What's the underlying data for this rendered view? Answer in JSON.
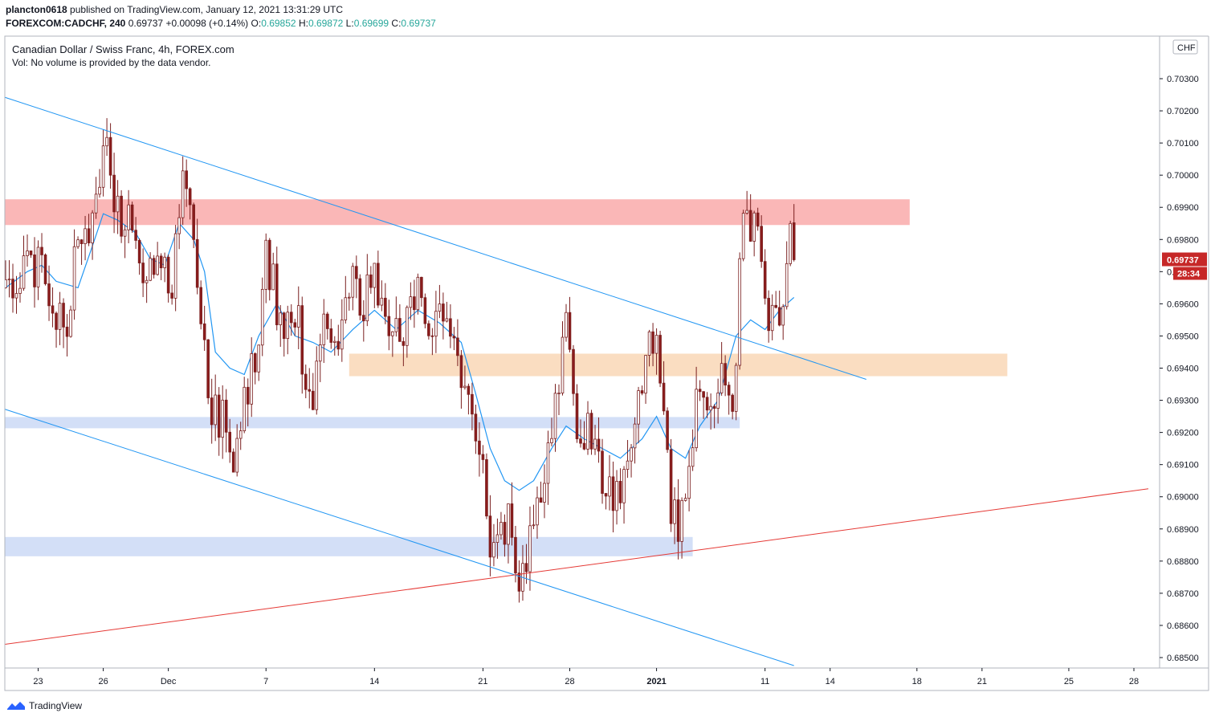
{
  "header": {
    "author": "plancton0618",
    "published_text": "published on TradingView.com, January 12, 2021 13:31:29 UTC",
    "symbol": "FOREXCOM:CADCHF, 240",
    "last": "0.69737",
    "change": "+0.00098 (+0.14%)",
    "o_label": "O:",
    "o": "0.69852",
    "h_label": "H:",
    "h": "0.69872",
    "l_label": "L:",
    "l": "0.69699",
    "c_label": "C:",
    "c": "0.69737"
  },
  "legend": {
    "title": "Canadian Dollar / Swiss Franc, 4h, FOREX.com",
    "vol": "Vol: No volume is provided by the data vendor."
  },
  "price_axis": {
    "currency": "CHF",
    "last_price_tag": "0.69737",
    "countdown_tag": "28:34",
    "tag_color": "#c62828"
  },
  "footer": {
    "brand": "TradingView"
  },
  "chart_data": {
    "type": "candlestick",
    "timeframe": "4h",
    "y_ticks": [
      0.703,
      0.702,
      0.701,
      0.7,
      0.699,
      0.698,
      0.697,
      0.696,
      0.695,
      0.694,
      0.693,
      0.692,
      0.691,
      0.69,
      0.689,
      0.688,
      0.687,
      0.686,
      0.685
    ],
    "ylim": [
      0.6847,
      0.704
    ],
    "x_ticks": [
      {
        "label": "23",
        "i": 9
      },
      {
        "label": "26",
        "i": 27
      },
      {
        "label": "Dec",
        "i": 45
      },
      {
        "label": "7",
        "i": 72
      },
      {
        "label": "14",
        "i": 102
      },
      {
        "label": "21",
        "i": 132
      },
      {
        "label": "28",
        "i": 156
      },
      {
        "label": "2021",
        "i": 180,
        "bold": true
      },
      {
        "label": "11",
        "i": 210
      },
      {
        "label": "14",
        "i": 228
      },
      {
        "label": "18",
        "i": 252
      },
      {
        "label": "21",
        "i": 270
      },
      {
        "label": "25",
        "i": 294
      },
      {
        "label": "28",
        "i": 312
      }
    ],
    "price_points": [
      [
        0,
        0.6965
      ],
      [
        6,
        0.6975
      ],
      [
        10,
        0.6968
      ],
      [
        14,
        0.696
      ],
      [
        16,
        0.6948
      ],
      [
        20,
        0.6978
      ],
      [
        24,
        0.6982
      ],
      [
        27,
        0.7015
      ],
      [
        30,
        0.6985
      ],
      [
        34,
        0.6988
      ],
      [
        38,
        0.6962
      ],
      [
        42,
        0.6975
      ],
      [
        46,
        0.696
      ],
      [
        48,
        0.699
      ],
      [
        50,
        0.6998
      ],
      [
        53,
        0.697
      ],
      [
        56,
        0.693
      ],
      [
        60,
        0.6925
      ],
      [
        63,
        0.6905
      ],
      [
        66,
        0.693
      ],
      [
        69,
        0.694
      ],
      [
        72,
        0.6978
      ],
      [
        76,
        0.6955
      ],
      [
        80,
        0.696
      ],
      [
        84,
        0.693
      ],
      [
        88,
        0.695
      ],
      [
        92,
        0.694
      ],
      [
        95,
        0.697
      ],
      [
        98,
        0.696
      ],
      [
        102,
        0.697
      ],
      [
        106,
        0.695
      ],
      [
        110,
        0.6945
      ],
      [
        114,
        0.6972
      ],
      [
        118,
        0.695
      ],
      [
        122,
        0.6955
      ],
      [
        126,
        0.694
      ],
      [
        129,
        0.6922
      ],
      [
        132,
        0.6905
      ],
      [
        135,
        0.688
      ],
      [
        139,
        0.6895
      ],
      [
        142,
        0.687
      ],
      [
        145,
        0.6888
      ],
      [
        149,
        0.691
      ],
      [
        152,
        0.6925
      ],
      [
        155,
        0.6955
      ],
      [
        158,
        0.6925
      ],
      [
        162,
        0.692
      ],
      [
        166,
        0.6905
      ],
      [
        170,
        0.6898
      ],
      [
        174,
        0.6925
      ],
      [
        178,
        0.6952
      ],
      [
        181,
        0.694
      ],
      [
        184,
        0.6895
      ],
      [
        188,
        0.6893
      ],
      [
        191,
        0.6935
      ],
      [
        194,
        0.6925
      ],
      [
        198,
        0.6945
      ],
      [
        201,
        0.693
      ],
      [
        204,
        0.6985
      ],
      [
        207,
        0.6988
      ],
      [
        210,
        0.6962
      ],
      [
        212,
        0.6955
      ],
      [
        215,
        0.6962
      ],
      [
        217,
        0.698
      ],
      [
        218,
        0.69737
      ]
    ],
    "ma_points": [
      [
        0,
        0.6965
      ],
      [
        6,
        0.697
      ],
      [
        10,
        0.6972
      ],
      [
        14,
        0.6967
      ],
      [
        20,
        0.6965
      ],
      [
        24,
        0.6978
      ],
      [
        27,
        0.6988
      ],
      [
        31,
        0.6986
      ],
      [
        36,
        0.6982
      ],
      [
        40,
        0.6974
      ],
      [
        44,
        0.6972
      ],
      [
        48,
        0.6985
      ],
      [
        52,
        0.698
      ],
      [
        55,
        0.697
      ],
      [
        58,
        0.6945
      ],
      [
        62,
        0.694
      ],
      [
        66,
        0.6938
      ],
      [
        70,
        0.695
      ],
      [
        75,
        0.696
      ],
      [
        80,
        0.695
      ],
      [
        85,
        0.6948
      ],
      [
        90,
        0.6945
      ],
      [
        96,
        0.6952
      ],
      [
        102,
        0.6958
      ],
      [
        108,
        0.6952
      ],
      [
        114,
        0.6958
      ],
      [
        120,
        0.6954
      ],
      [
        126,
        0.6948
      ],
      [
        130,
        0.6932
      ],
      [
        134,
        0.6915
      ],
      [
        138,
        0.6905
      ],
      [
        142,
        0.6902
      ],
      [
        146,
        0.6905
      ],
      [
        151,
        0.6915
      ],
      [
        155,
        0.6922
      ],
      [
        160,
        0.6918
      ],
      [
        165,
        0.6915
      ],
      [
        170,
        0.6912
      ],
      [
        176,
        0.6918
      ],
      [
        180,
        0.6925
      ],
      [
        184,
        0.6915
      ],
      [
        188,
        0.6912
      ],
      [
        192,
        0.6922
      ],
      [
        197,
        0.693
      ],
      [
        202,
        0.695
      ],
      [
        206,
        0.6955
      ],
      [
        210,
        0.6952
      ],
      [
        214,
        0.6958
      ],
      [
        218,
        0.6962
      ]
    ],
    "zones": [
      {
        "color": "#f8a3a3",
        "x0": -1,
        "x1": 250,
        "y0": 0.69845,
        "y1": 0.69925
      },
      {
        "color": "#f9d3b0",
        "x0": 95,
        "x1": 277,
        "y0": 0.69375,
        "y1": 0.69445
      },
      {
        "color": "#c6d6f5",
        "x0": -1,
        "x1": 203,
        "y0": 0.69213,
        "y1": 0.69248
      },
      {
        "color": "#c6d6f5",
        "x0": -1,
        "x1": 190,
        "y0": 0.68815,
        "y1": 0.68875
      }
    ],
    "trendlines": [
      {
        "color": "#2196f3",
        "i0": -1,
        "p0": 0.70245,
        "i1": 238,
        "p1": 0.69365
      },
      {
        "color": "#2196f3",
        "i0": -1,
        "p0": 0.69275,
        "i1": 218,
        "p1": 0.68475
      },
      {
        "color": "#e53935",
        "i0": -1,
        "p0": 0.6854,
        "i1": 316,
        "p1": 0.69025
      }
    ],
    "last_price": 0.69737,
    "last_index": 218
  }
}
